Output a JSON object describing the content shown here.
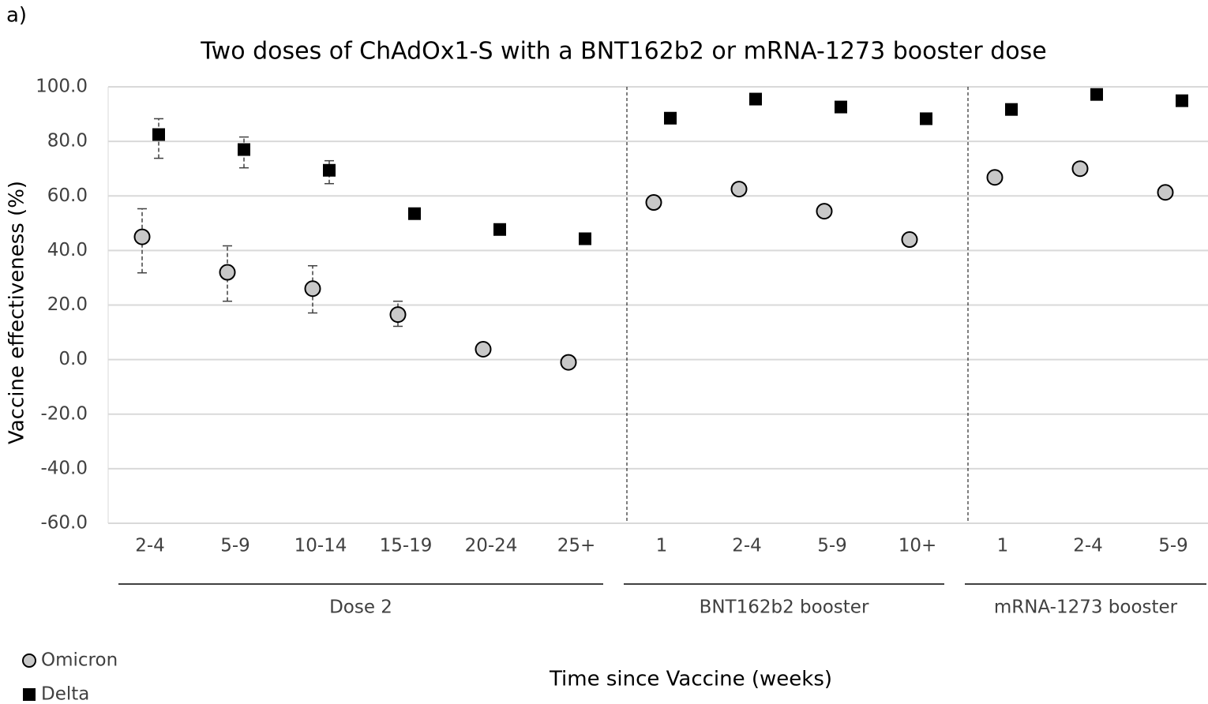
{
  "chart_data": {
    "type": "scatter",
    "panel_label": "a)",
    "title": "Two doses of ChAdOx1-S with a BNT162b2 or mRNA-1273 booster dose",
    "y_label": "Vaccine effectiveness (%)",
    "x_label": "Time since Vaccine (weeks)",
    "groups": [
      {
        "name": "Dose 2",
        "categories": [
          "2-4",
          "5-9",
          "10-14",
          "15-19",
          "20-24",
          "25+"
        ]
      },
      {
        "name": "BNT162b2 booster",
        "categories": [
          "1",
          "2-4",
          "5-9",
          "10+"
        ]
      },
      {
        "name": "mRNA-1273 booster",
        "categories": [
          "1",
          "2-4",
          "5-9"
        ]
      }
    ],
    "ylim": [
      -60,
      100
    ],
    "yticks": [
      {
        "value": -60,
        "label": "-60.0"
      },
      {
        "value": -40,
        "label": "-40.0"
      },
      {
        "value": -20,
        "label": "-20.0"
      },
      {
        "value": 0,
        "label": "0.0"
      },
      {
        "value": 20,
        "label": "20.0"
      },
      {
        "value": 40,
        "label": "40.0"
      },
      {
        "value": 60,
        "label": "60.0"
      },
      {
        "value": 80,
        "label": "80.0"
      },
      {
        "value": 100,
        "label": "100.0"
      }
    ],
    "grid": true,
    "legend": "bottom-left",
    "series": [
      {
        "name": "Omicron",
        "marker": "circle",
        "color": "#c8c8c8",
        "values": [
          45,
          32,
          26,
          16.5,
          3.8,
          -1,
          57.6,
          62.5,
          54.4,
          44,
          66.8,
          70,
          61.3
        ],
        "lower": [
          31.8,
          21.4,
          17.1,
          12.2,
          null,
          null,
          null,
          null,
          null,
          null,
          null,
          null,
          null
        ],
        "upper": [
          55.3,
          41.7,
          34.4,
          21.4,
          null,
          null,
          null,
          null,
          null,
          null,
          null,
          null,
          null
        ]
      },
      {
        "name": "Delta",
        "marker": "square",
        "color": "#000000",
        "values": [
          82.5,
          77,
          69.4,
          53.5,
          47.7,
          44.3,
          88.5,
          95.5,
          92.6,
          88.3,
          91.7,
          97.2,
          94.9
        ],
        "lower": [
          73.8,
          70.3,
          64.5,
          null,
          null,
          null,
          null,
          null,
          null,
          null,
          null,
          null,
          null
        ],
        "upper": [
          88.3,
          81.6,
          72.9,
          null,
          null,
          null,
          null,
          null,
          null,
          null,
          null,
          null,
          null
        ]
      }
    ]
  }
}
